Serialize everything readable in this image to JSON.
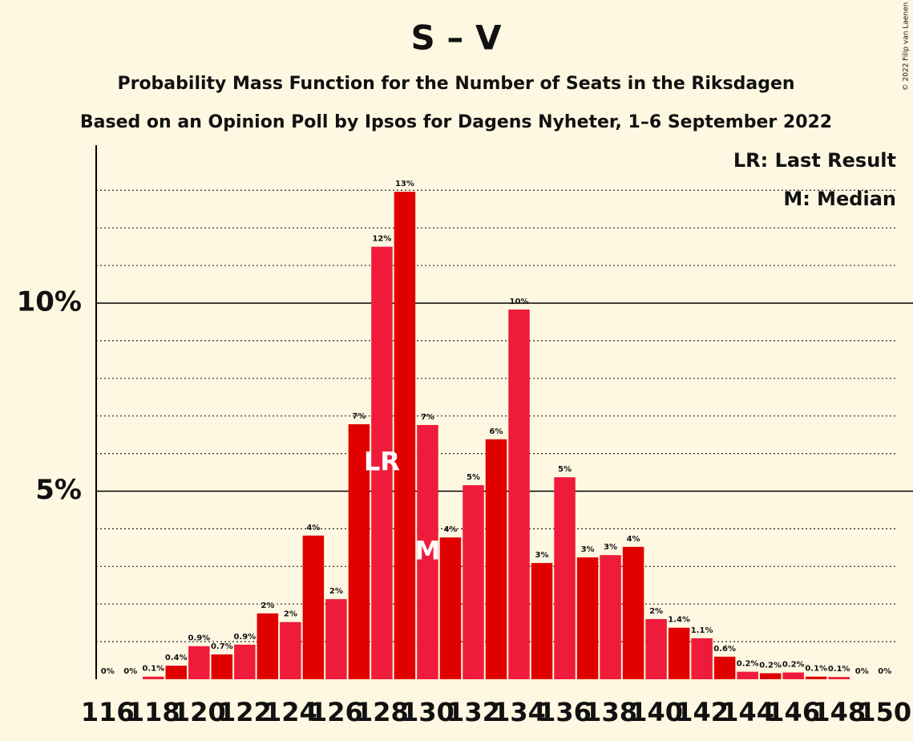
{
  "chart_data": {
    "type": "bar",
    "title": "S – V",
    "subtitle": [
      "Probability Mass Function for the Number of Seats in the Riksdagen",
      "Based on an Opinion Poll by Ipsos for Dagens Nyheter, 1–6 September 2022"
    ],
    "copyright": "© 2022 Filip van Laenen",
    "categories": [
      "116",
      null,
      "118",
      null,
      "120",
      null,
      "122",
      null,
      "124",
      null,
      "126",
      null,
      "128",
      null,
      "130",
      null,
      "132",
      null,
      "134",
      null,
      "136",
      null,
      "138",
      null,
      "140",
      null,
      "142",
      null,
      "144",
      null,
      "146",
      null,
      "148",
      null,
      "150"
    ],
    "values": [
      0,
      0,
      0.07,
      0.36,
      0.88,
      0.66,
      0.92,
      1.75,
      1.52,
      3.82,
      2.13,
      6.78,
      11.5,
      12.96,
      6.76,
      3.77,
      5.16,
      6.38,
      9.83,
      3.09,
      5.37,
      3.24,
      3.3,
      3.52,
      1.6,
      1.37,
      1.09,
      0.6,
      0.2,
      0.16,
      0.18,
      0.07,
      0.06,
      0,
      0
    ],
    "value_labels": [
      "0%",
      "0%",
      "0.1%",
      "0.4%",
      "0.9%",
      "0.7%",
      "0.9%",
      "2%",
      "2%",
      "4%",
      "2%",
      "7%",
      "12%",
      "13%",
      "7%",
      "4%",
      "5%",
      "6%",
      "10%",
      "3%",
      "5%",
      "3%",
      "3%",
      "4%",
      "2%",
      "1.4%",
      "1.1%",
      "0.6%",
      "0.2%",
      "0.2%",
      "0.2%",
      "0.1%",
      "0.1%",
      "0%",
      "0%"
    ],
    "colors": [
      "#ee1c3a",
      "#e00000"
    ],
    "ylim": [
      0,
      14.2
    ],
    "yticks": [
      {
        "value": 5,
        "label": "5%"
      },
      {
        "value": 10,
        "label": "10%"
      }
    ],
    "minor_yticks": [
      1,
      2,
      3,
      4,
      6,
      7,
      8,
      9,
      11,
      12,
      13
    ],
    "grid": true,
    "markers": [
      {
        "at": "128",
        "text": "LR"
      },
      {
        "at": "130",
        "text": "M"
      }
    ],
    "legend": [
      "LR: Last Result",
      "M: Median"
    ]
  }
}
